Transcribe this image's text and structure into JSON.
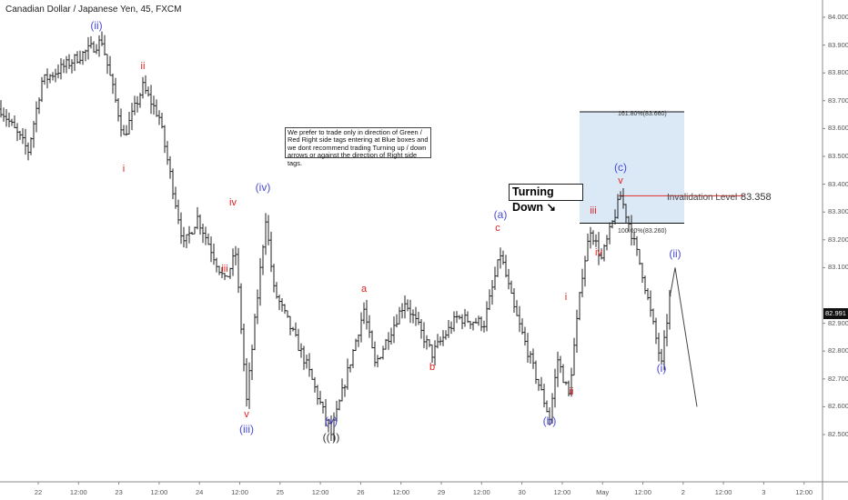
{
  "header": {
    "title": "Canadian Dollar / Japanese Yen, 45, FXCM"
  },
  "note": "We prefer to trade only in direction of Green / Red Right side tags entering at Blue boxes and we dont recommend trading Turning up / down arrows or against the direction of Right side tags.",
  "turning_down": "Turning Down",
  "colors": {
    "blue_label": "#4a4ad8",
    "red_label": "#e02020",
    "box": "#dbe8f6",
    "invalidation": "#e04040",
    "bars": "#222222"
  },
  "chart_data": {
    "type": "ohlc",
    "symbol": "CADJPY",
    "timeframe": "45",
    "ylim": [
      82.45,
      84.05
    ],
    "yticks": [
      "84.000",
      "83.900",
      "83.800",
      "83.700",
      "83.600",
      "83.500",
      "83.400",
      "83.300",
      "83.200",
      "83.100",
      "82.900",
      "82.800",
      "82.700",
      "82.600",
      "82.500"
    ],
    "ytick_values": [
      84.0,
      83.9,
      83.8,
      83.7,
      83.6,
      83.5,
      83.4,
      83.3,
      83.2,
      83.1,
      82.9,
      82.8,
      82.7,
      82.6,
      82.5
    ],
    "xticks": [
      "22",
      "12:00",
      "23",
      "12:00",
      "24",
      "12:00",
      "25",
      "12:00",
      "26",
      "12:00",
      "29",
      "12:00",
      "30",
      "12:00",
      "May",
      "12:00",
      "2",
      "12:00",
      "3",
      "12:00"
    ],
    "price_path_bar_price": [
      [
        0,
        83.67
      ],
      [
        10,
        83.52
      ],
      [
        15,
        83.77
      ],
      [
        37,
        83.915
      ],
      [
        45,
        83.57
      ],
      [
        52,
        83.75
      ],
      [
        58,
        83.64
      ],
      [
        67,
        83.18
      ],
      [
        72,
        83.28
      ],
      [
        82,
        83.05
      ],
      [
        86,
        83.15
      ],
      [
        90,
        82.62
      ],
      [
        97,
        83.28
      ],
      [
        100,
        83.02
      ],
      [
        112,
        82.75
      ],
      [
        121,
        82.5
      ],
      [
        133,
        82.95
      ],
      [
        137,
        82.75
      ],
      [
        148,
        82.98
      ],
      [
        158,
        82.79
      ],
      [
        167,
        82.92
      ],
      [
        177,
        82.9
      ],
      [
        183,
        83.15
      ],
      [
        188,
        82.95
      ],
      [
        193,
        82.8
      ],
      [
        201,
        82.56
      ],
      [
        204,
        82.77
      ],
      [
        208,
        82.64
      ],
      [
        213,
        83.08
      ],
      [
        216,
        83.24
      ],
      [
        220,
        83.13
      ],
      [
        227,
        83.358
      ],
      [
        230,
        83.26
      ],
      [
        235,
        83.08
      ],
      [
        242,
        82.75
      ],
      [
        245,
        82.991
      ]
    ],
    "last_price": "82.991",
    "projection": [
      [
        245,
        82.991
      ],
      [
        247,
        83.1
      ],
      [
        255,
        82.6
      ]
    ],
    "fib": {
      "upper": "161.80%(83.660)",
      "lower": "100.00%(83.260)",
      "upper_value": 83.66,
      "lower_value": 83.26
    },
    "invalidation": {
      "label": "Invalidation Level",
      "value": "83.358"
    },
    "wave_labels": [
      {
        "text": "(ii)",
        "bar": 35,
        "price": 83.97,
        "color": "blue"
      },
      {
        "text": "ii",
        "bar": 52,
        "price": 83.82,
        "color": "red"
      },
      {
        "text": "i",
        "bar": 45,
        "price": 83.45,
        "color": "red"
      },
      {
        "text": "(iv)",
        "bar": 96,
        "price": 83.39,
        "color": "blue"
      },
      {
        "text": "iv",
        "bar": 85,
        "price": 83.33,
        "color": "red"
      },
      {
        "text": "iii",
        "bar": 82,
        "price": 83.09,
        "color": "red"
      },
      {
        "text": "v",
        "bar": 90,
        "price": 82.57,
        "color": "red"
      },
      {
        "text": "(iii)",
        "bar": 90,
        "price": 82.52,
        "color": "blue"
      },
      {
        "text": "(v)",
        "bar": 121,
        "price": 82.55,
        "color": "blue"
      },
      {
        "text": "((i))",
        "bar": 121,
        "price": 82.49,
        "color": "dark"
      },
      {
        "text": "a",
        "bar": 133,
        "price": 83.02,
        "color": "red"
      },
      {
        "text": "b",
        "bar": 158,
        "price": 82.74,
        "color": "red"
      },
      {
        "text": "(a)",
        "bar": 183,
        "price": 83.29,
        "color": "blue"
      },
      {
        "text": "c",
        "bar": 182,
        "price": 83.24,
        "color": "red"
      },
      {
        "text": "(b)",
        "bar": 201,
        "price": 82.55,
        "color": "blue"
      },
      {
        "text": "i",
        "bar": 207,
        "price": 82.99,
        "color": "red"
      },
      {
        "text": "ii",
        "bar": 209,
        "price": 82.65,
        "color": "red"
      },
      {
        "text": "iii",
        "bar": 217,
        "price": 83.3,
        "color": "red"
      },
      {
        "text": "iv",
        "bar": 219,
        "price": 83.15,
        "color": "red"
      },
      {
        "text": "(c)",
        "bar": 227,
        "price": 83.46,
        "color": "blue"
      },
      {
        "text": "v",
        "bar": 227,
        "price": 83.41,
        "color": "red"
      },
      {
        "text": "(ii)",
        "bar": 247,
        "price": 83.15,
        "color": "blue"
      },
      {
        "text": "(i)",
        "bar": 242,
        "price": 82.74,
        "color": "blue"
      }
    ]
  }
}
